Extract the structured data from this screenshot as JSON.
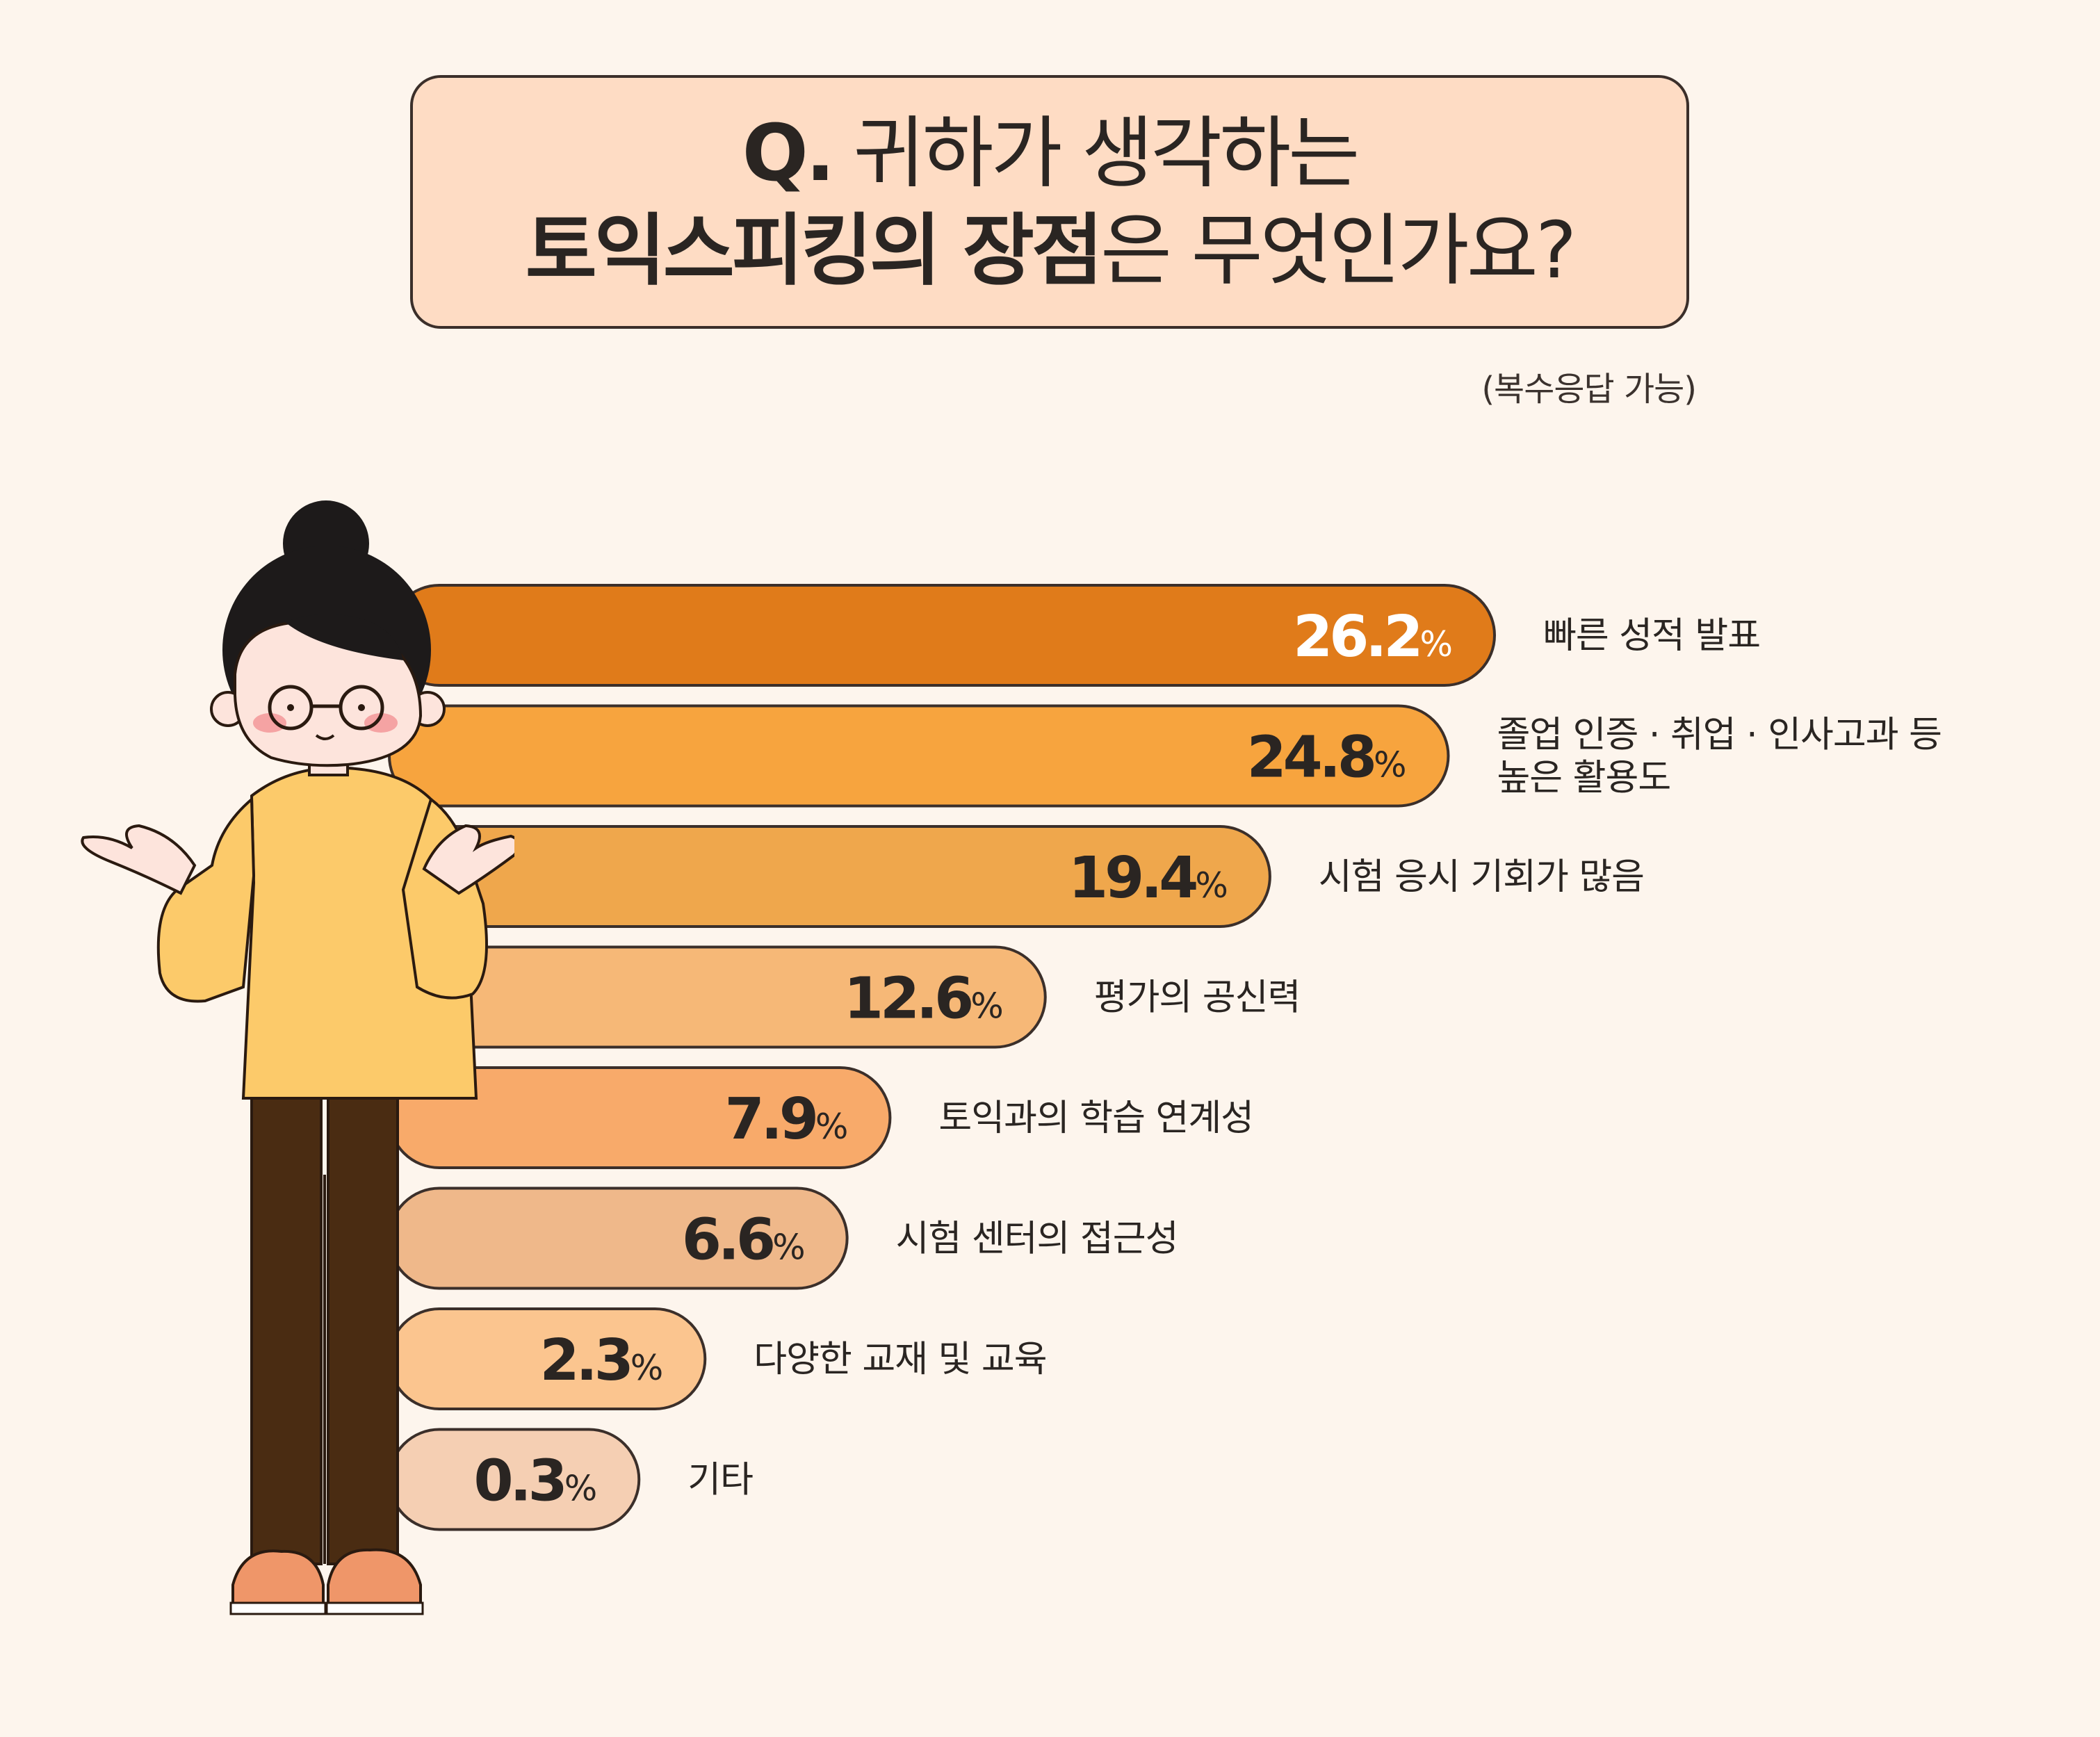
{
  "title": {
    "line1_q": "Q.",
    "line1_text": "귀하가 생각하는",
    "line2_bold": "토익스피킹의 장점",
    "line2_normal": "은 무엇인가요?"
  },
  "note": "(복수응답 가능)",
  "chart_data": {
    "type": "bar",
    "orientation": "horizontal",
    "unit": "%",
    "categories": [
      "빠른 성적 발표",
      "졸업 인증 · 취업 · 인사고과 등|높은 활용도",
      "시험 응시 기회가 많음",
      "평가의 공신력",
      "토익과의 학습 연계성",
      "시험 센터의 접근성",
      "다양한 교재 및 교육",
      "기타"
    ],
    "values": [
      26.2,
      24.8,
      19.4,
      12.6,
      7.9,
      6.6,
      2.3,
      0.3
    ],
    "value_labels": [
      "26.2",
      "24.8",
      "19.4",
      "12.6",
      "7.9",
      "6.6",
      "2.3",
      "0.3"
    ],
    "bar_colors": [
      "#e07b1a",
      "#f7a43e",
      "#efa74c",
      "#f6b877",
      "#f8aa6a",
      "#efb88a",
      "#fbc58f",
      "#f5cfb3"
    ],
    "label_colors": [
      "#ffffff",
      "#2a2522",
      "#2a2522",
      "#2a2522",
      "#2a2522",
      "#2a2522",
      "#2a2522",
      "#2a2522"
    ],
    "xlim": [
      0,
      26.2
    ],
    "grid": false,
    "legend": "none"
  }
}
